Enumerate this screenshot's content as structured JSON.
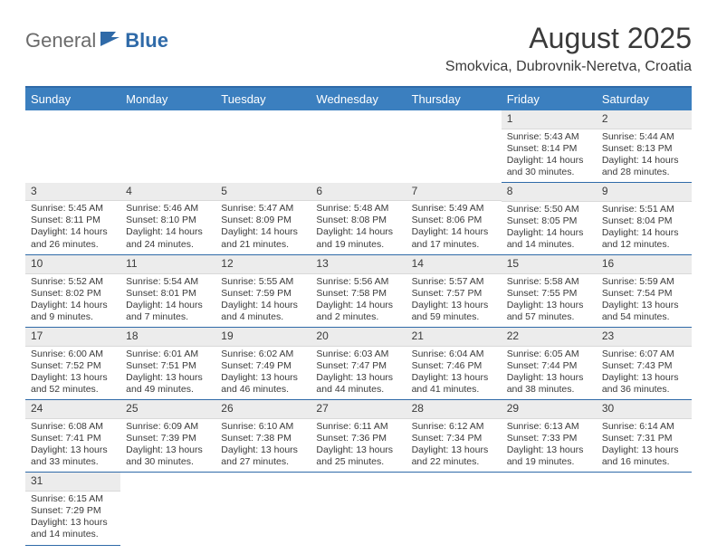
{
  "brand": {
    "part1": "General",
    "part2": "Blue"
  },
  "title": "August 2025",
  "location": "Smokvica, Dubrovnik-Neretva, Croatia",
  "colors": {
    "header_bg": "#3b7fbf",
    "header_border": "#2f6aa8",
    "cell_border": "#2f6aa8",
    "daynum_bg": "#ececec",
    "text": "#3a3a3a"
  },
  "weekdays": [
    "Sunday",
    "Monday",
    "Tuesday",
    "Wednesday",
    "Thursday",
    "Friday",
    "Saturday"
  ],
  "weeks": [
    [
      null,
      null,
      null,
      null,
      null,
      {
        "n": "1",
        "sr": "Sunrise: 5:43 AM",
        "ss": "Sunset: 8:14 PM",
        "dl": "Daylight: 14 hours and 30 minutes."
      },
      {
        "n": "2",
        "sr": "Sunrise: 5:44 AM",
        "ss": "Sunset: 8:13 PM",
        "dl": "Daylight: 14 hours and 28 minutes."
      }
    ],
    [
      {
        "n": "3",
        "sr": "Sunrise: 5:45 AM",
        "ss": "Sunset: 8:11 PM",
        "dl": "Daylight: 14 hours and 26 minutes."
      },
      {
        "n": "4",
        "sr": "Sunrise: 5:46 AM",
        "ss": "Sunset: 8:10 PM",
        "dl": "Daylight: 14 hours and 24 minutes."
      },
      {
        "n": "5",
        "sr": "Sunrise: 5:47 AM",
        "ss": "Sunset: 8:09 PM",
        "dl": "Daylight: 14 hours and 21 minutes."
      },
      {
        "n": "6",
        "sr": "Sunrise: 5:48 AM",
        "ss": "Sunset: 8:08 PM",
        "dl": "Daylight: 14 hours and 19 minutes."
      },
      {
        "n": "7",
        "sr": "Sunrise: 5:49 AM",
        "ss": "Sunset: 8:06 PM",
        "dl": "Daylight: 14 hours and 17 minutes."
      },
      {
        "n": "8",
        "sr": "Sunrise: 5:50 AM",
        "ss": "Sunset: 8:05 PM",
        "dl": "Daylight: 14 hours and 14 minutes."
      },
      {
        "n": "9",
        "sr": "Sunrise: 5:51 AM",
        "ss": "Sunset: 8:04 PM",
        "dl": "Daylight: 14 hours and 12 minutes."
      }
    ],
    [
      {
        "n": "10",
        "sr": "Sunrise: 5:52 AM",
        "ss": "Sunset: 8:02 PM",
        "dl": "Daylight: 14 hours and 9 minutes."
      },
      {
        "n": "11",
        "sr": "Sunrise: 5:54 AM",
        "ss": "Sunset: 8:01 PM",
        "dl": "Daylight: 14 hours and 7 minutes."
      },
      {
        "n": "12",
        "sr": "Sunrise: 5:55 AM",
        "ss": "Sunset: 7:59 PM",
        "dl": "Daylight: 14 hours and 4 minutes."
      },
      {
        "n": "13",
        "sr": "Sunrise: 5:56 AM",
        "ss": "Sunset: 7:58 PM",
        "dl": "Daylight: 14 hours and 2 minutes."
      },
      {
        "n": "14",
        "sr": "Sunrise: 5:57 AM",
        "ss": "Sunset: 7:57 PM",
        "dl": "Daylight: 13 hours and 59 minutes."
      },
      {
        "n": "15",
        "sr": "Sunrise: 5:58 AM",
        "ss": "Sunset: 7:55 PM",
        "dl": "Daylight: 13 hours and 57 minutes."
      },
      {
        "n": "16",
        "sr": "Sunrise: 5:59 AM",
        "ss": "Sunset: 7:54 PM",
        "dl": "Daylight: 13 hours and 54 minutes."
      }
    ],
    [
      {
        "n": "17",
        "sr": "Sunrise: 6:00 AM",
        "ss": "Sunset: 7:52 PM",
        "dl": "Daylight: 13 hours and 52 minutes."
      },
      {
        "n": "18",
        "sr": "Sunrise: 6:01 AM",
        "ss": "Sunset: 7:51 PM",
        "dl": "Daylight: 13 hours and 49 minutes."
      },
      {
        "n": "19",
        "sr": "Sunrise: 6:02 AM",
        "ss": "Sunset: 7:49 PM",
        "dl": "Daylight: 13 hours and 46 minutes."
      },
      {
        "n": "20",
        "sr": "Sunrise: 6:03 AM",
        "ss": "Sunset: 7:47 PM",
        "dl": "Daylight: 13 hours and 44 minutes."
      },
      {
        "n": "21",
        "sr": "Sunrise: 6:04 AM",
        "ss": "Sunset: 7:46 PM",
        "dl": "Daylight: 13 hours and 41 minutes."
      },
      {
        "n": "22",
        "sr": "Sunrise: 6:05 AM",
        "ss": "Sunset: 7:44 PM",
        "dl": "Daylight: 13 hours and 38 minutes."
      },
      {
        "n": "23",
        "sr": "Sunrise: 6:07 AM",
        "ss": "Sunset: 7:43 PM",
        "dl": "Daylight: 13 hours and 36 minutes."
      }
    ],
    [
      {
        "n": "24",
        "sr": "Sunrise: 6:08 AM",
        "ss": "Sunset: 7:41 PM",
        "dl": "Daylight: 13 hours and 33 minutes."
      },
      {
        "n": "25",
        "sr": "Sunrise: 6:09 AM",
        "ss": "Sunset: 7:39 PM",
        "dl": "Daylight: 13 hours and 30 minutes."
      },
      {
        "n": "26",
        "sr": "Sunrise: 6:10 AM",
        "ss": "Sunset: 7:38 PM",
        "dl": "Daylight: 13 hours and 27 minutes."
      },
      {
        "n": "27",
        "sr": "Sunrise: 6:11 AM",
        "ss": "Sunset: 7:36 PM",
        "dl": "Daylight: 13 hours and 25 minutes."
      },
      {
        "n": "28",
        "sr": "Sunrise: 6:12 AM",
        "ss": "Sunset: 7:34 PM",
        "dl": "Daylight: 13 hours and 22 minutes."
      },
      {
        "n": "29",
        "sr": "Sunrise: 6:13 AM",
        "ss": "Sunset: 7:33 PM",
        "dl": "Daylight: 13 hours and 19 minutes."
      },
      {
        "n": "30",
        "sr": "Sunrise: 6:14 AM",
        "ss": "Sunset: 7:31 PM",
        "dl": "Daylight: 13 hours and 16 minutes."
      }
    ],
    [
      {
        "n": "31",
        "sr": "Sunrise: 6:15 AM",
        "ss": "Sunset: 7:29 PM",
        "dl": "Daylight: 13 hours and 14 minutes."
      },
      null,
      null,
      null,
      null,
      null,
      null
    ]
  ]
}
